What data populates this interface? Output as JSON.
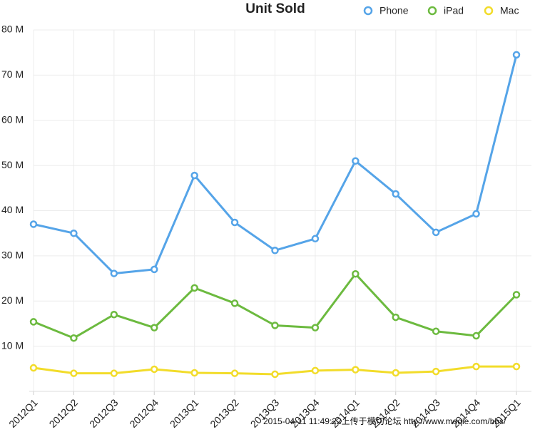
{
  "chart_data": {
    "type": "line",
    "title": "Unit Sold",
    "categories": [
      "2012Q1",
      "2012Q2",
      "2012Q3",
      "2012Q4",
      "2013Q1",
      "2013Q2",
      "2013Q3",
      "2013Q4",
      "2014Q1",
      "2014Q2",
      "2014Q3",
      "2014Q4",
      "2015Q1"
    ],
    "series": [
      {
        "name": "Phone",
        "color": "#55a4e8",
        "values": [
          37.0,
          35.0,
          26.1,
          27.0,
          47.8,
          37.4,
          31.2,
          33.8,
          51.0,
          43.7,
          35.2,
          39.3,
          74.5
        ]
      },
      {
        "name": "iPad",
        "color": "#6cba3f",
        "values": [
          15.4,
          11.8,
          17.0,
          14.1,
          22.9,
          19.5,
          14.6,
          14.1,
          26.0,
          16.4,
          13.3,
          12.3,
          21.4
        ]
      },
      {
        "name": "Mac",
        "color": "#f2dc2a",
        "values": [
          5.2,
          4.0,
          4.0,
          4.9,
          4.1,
          4.0,
          3.8,
          4.6,
          4.8,
          4.1,
          4.4,
          5.5,
          5.5
        ]
      }
    ],
    "ylim": [
      0,
      80
    ],
    "yticks": [
      {
        "value": 10,
        "label": "10 M"
      },
      {
        "value": 20,
        "label": "20 M"
      },
      {
        "value": 30,
        "label": "30 M"
      },
      {
        "value": 40,
        "label": "40 M"
      },
      {
        "value": 50,
        "label": "50 M"
      },
      {
        "value": 60,
        "label": "60 M"
      },
      {
        "value": 70,
        "label": "70 M"
      },
      {
        "value": 80,
        "label": "80 M"
      }
    ],
    "grid": true,
    "legend": "top-right",
    "watermark": "2015-04-11 11:49:22上传于模切论坛 http://www.moqie.com/bbs/"
  }
}
